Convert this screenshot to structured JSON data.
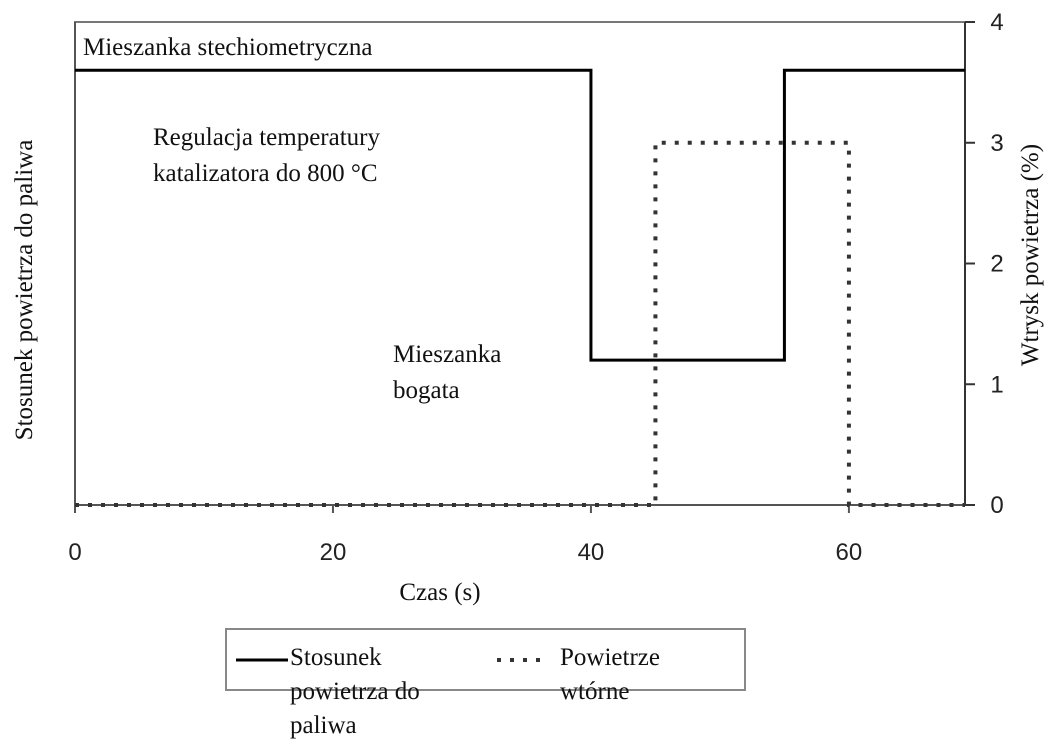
{
  "chart_data": {
    "type": "line",
    "annotations": [
      {
        "lines": [
          "Mieszanka stechiometryczna"
        ]
      },
      {
        "lines": [
          "Regulacja temperatury",
          "katalizatora do 800 °C"
        ]
      },
      {
        "lines": [
          "Mieszanka",
          "bogata"
        ]
      }
    ],
    "x_label": "Czas (s)",
    "y_label": "Stosunek powietrza do paliwa",
    "y2_label": "Wtrysk powietrza (%)",
    "xlim": [
      0,
      69
    ],
    "xticks": [
      0,
      20,
      40,
      60
    ],
    "ylim": [
      0,
      4
    ],
    "y2lim": [
      0,
      4
    ],
    "y2ticks": [
      0,
      1,
      2,
      3,
      4
    ],
    "series": [
      {
        "name": "Stosunek powietrza do paliwa",
        "color": "#000000",
        "style": "solid",
        "x": [
          0,
          40,
          40,
          55,
          55,
          69
        ],
        "values": [
          3.6,
          3.6,
          1.2,
          1.2,
          3.6,
          3.6
        ]
      },
      {
        "name": "Powietrze wtórne",
        "color": "#333333",
        "style": "dotted",
        "axis": "y2",
        "x": [
          0,
          45,
          45,
          60,
          60,
          69
        ],
        "values": [
          0,
          0,
          3,
          3,
          0,
          0
        ]
      }
    ]
  }
}
